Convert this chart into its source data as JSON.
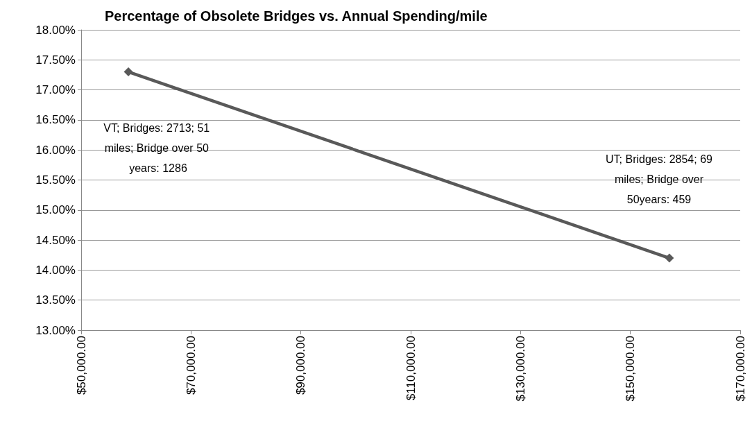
{
  "chart_data": {
    "type": "line",
    "title": "Percentage of Obsolete Bridges vs. Annual Spending/mile",
    "x": [
      58600,
      157100
    ],
    "series": [
      {
        "color": "#595959",
        "values": [
          17.3,
          14.2
        ]
      }
    ],
    "xlim": [
      50000,
      170000
    ],
    "xticks": [
      {
        "value": 50000,
        "label": "$50,000.00"
      },
      {
        "value": 70000,
        "label": "$70,000.00"
      },
      {
        "value": 90000,
        "label": "$90,000.00"
      },
      {
        "value": 110000,
        "label": "$110,000.00"
      },
      {
        "value": 130000,
        "label": "$130,000.00"
      },
      {
        "value": 150000,
        "label": "$150,000.00"
      },
      {
        "value": 170000,
        "label": "$170,000.00"
      }
    ],
    "ylim": [
      13,
      18
    ],
    "yticks": [
      {
        "value": 13,
        "label": "13.00%"
      },
      {
        "value": 13.5,
        "label": "13.50%"
      },
      {
        "value": 14,
        "label": "14.00%"
      },
      {
        "value": 14.5,
        "label": "14.50%"
      },
      {
        "value": 15,
        "label": "15.00%"
      },
      {
        "value": 15.5,
        "label": "15.50%"
      },
      {
        "value": 16,
        "label": "16.00%"
      },
      {
        "value": 16.5,
        "label": "16.50%"
      },
      {
        "value": 17,
        "label": "17.00%"
      },
      {
        "value": 17.5,
        "label": "17.50%"
      },
      {
        "value": 18,
        "label": "18.00%"
      }
    ],
    "annotations": [
      "VT; Bridges: 2713; 51 miles; Bridge over 50 years: 1286",
      "UT; Bridges: 2854; 69 miles; Bridge over 50years: 459"
    ],
    "grid": "y",
    "marker": "diamond",
    "line_style": "solid"
  }
}
